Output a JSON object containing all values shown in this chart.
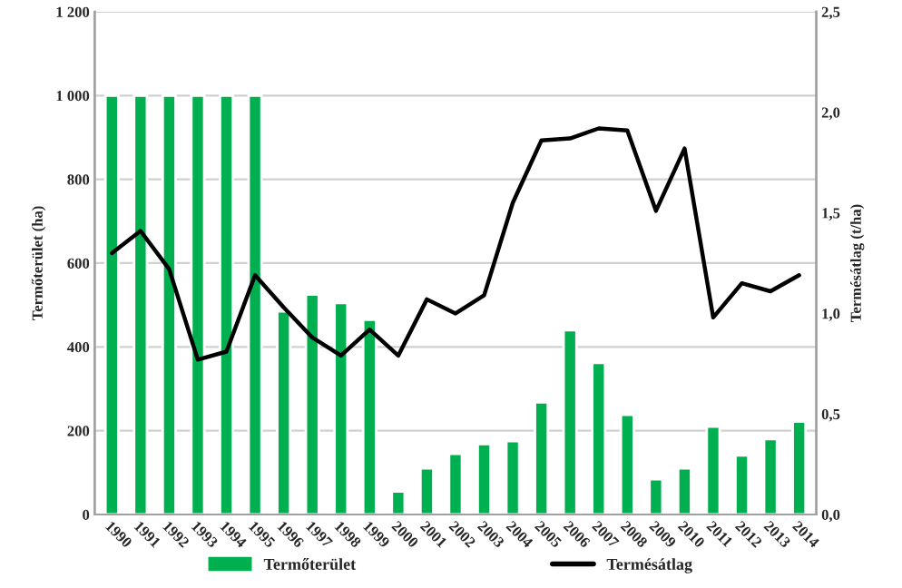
{
  "chart_data": {
    "type": "bar",
    "categories": [
      "1990",
      "1991",
      "1992",
      "1993",
      "1994",
      "1995",
      "1996",
      "1997",
      "1998",
      "1999",
      "2000",
      "2001",
      "2002",
      "2003",
      "2004",
      "2005",
      "2006",
      "2007",
      "2008",
      "2009",
      "2010",
      "2011",
      "2012",
      "2013",
      "2014"
    ],
    "series": [
      {
        "name": "Termőterület",
        "color": "#00b050",
        "values": [
          1000,
          1000,
          1000,
          1000,
          1000,
          1000,
          485,
          525,
          505,
          465,
          55,
          110,
          145,
          168,
          175,
          268,
          440,
          362,
          238,
          84,
          110,
          210,
          141,
          180,
          222
        ]
      },
      {
        "name": "Termésátlag",
        "type": "line",
        "axis": "y2",
        "color": "#000000",
        "values": [
          1.3,
          1.41,
          1.22,
          0.77,
          0.81,
          1.19,
          1.03,
          0.88,
          0.79,
          0.92,
          0.79,
          1.07,
          1.0,
          1.09,
          1.55,
          1.86,
          1.87,
          1.92,
          1.91,
          1.51,
          1.82,
          0.98,
          1.15,
          1.11,
          1.19
        ]
      }
    ],
    "ylabel": "Termőterület (ha)",
    "y2label": "Termésátlag (t/ha)",
    "ylim": [
      0,
      1200
    ],
    "yticks": [
      0,
      200,
      400,
      600,
      800,
      {
        "value": 1000,
        "label": "1 000"
      },
      {
        "value": 1200,
        "label": "1 200"
      }
    ],
    "y2lim": [
      0,
      2.5
    ],
    "y2ticks": [
      {
        "value": 0,
        "label": "0,0"
      },
      {
        "value": 0.5,
        "label": "0,5"
      },
      {
        "value": 1.0,
        "label": "1,0"
      },
      {
        "value": 1.5,
        "label": "1,5"
      },
      {
        "value": 2.0,
        "label": "2,0"
      },
      {
        "value": 2.5,
        "label": "2,5"
      }
    ],
    "grid": "y",
    "legend": "bottom",
    "marker": "none",
    "line_style": "solid"
  }
}
